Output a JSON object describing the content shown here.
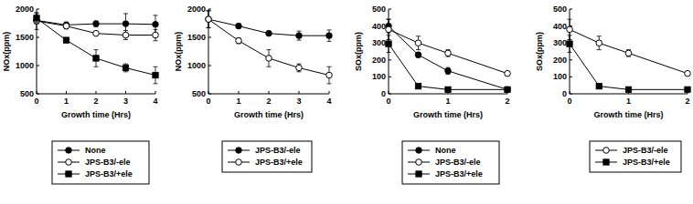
{
  "chart_data": [
    {
      "type": "line",
      "xlabel": "Growth time (Hrs)",
      "ylabel": "NOx(ppm)",
      "x": [
        0,
        1,
        2,
        3,
        4
      ],
      "xlim": [
        0,
        4
      ],
      "xticks": [
        0,
        1,
        2,
        3,
        4
      ],
      "ylim": [
        500,
        2000
      ],
      "yticks": [
        500,
        1000,
        1500,
        2000
      ],
      "legend": "below",
      "series": [
        {
          "name": "None",
          "color": "#000000",
          "marker": "filled_circle",
          "values": [
            1800,
            1720,
            1740,
            1740,
            1730
          ],
          "errors": [
            60,
            50,
            50,
            180,
            160
          ]
        },
        {
          "name": "JPS-B3/-ele",
          "color": "#000000",
          "marker": "open_circle",
          "values": [
            1790,
            1700,
            1570,
            1540,
            1540
          ],
          "errors": [
            150,
            50,
            30,
            80,
            100
          ]
        },
        {
          "name": "JPS-B3/+ele",
          "color": "#000000",
          "marker": "filled_square",
          "values": [
            1840,
            1450,
            1130,
            960,
            830
          ],
          "errors": [
            80,
            40,
            150,
            70,
            150
          ]
        }
      ]
    },
    {
      "type": "line",
      "xlabel": "Growth time (Hrs)",
      "ylabel": "NOx(ppm)",
      "x": [
        0,
        1,
        2,
        3,
        4
      ],
      "xlim": [
        0,
        4
      ],
      "xticks": [
        0,
        1,
        2,
        3,
        4
      ],
      "ylim": [
        500,
        2000
      ],
      "yticks": [
        500,
        1000,
        1500,
        2000
      ],
      "legend": "below",
      "series": [
        {
          "name": "JPS-B3/-ele",
          "color": "#000000",
          "marker": "filled_circle",
          "values": [
            1820,
            1700,
            1570,
            1530,
            1530
          ],
          "errors": [
            150,
            40,
            30,
            80,
            100
          ]
        },
        {
          "name": "JPS-B3/+ele",
          "color": "#000000",
          "marker": "open_circle",
          "values": [
            1820,
            1440,
            1130,
            960,
            830
          ],
          "errors": [
            150,
            50,
            150,
            70,
            150
          ]
        }
      ]
    },
    {
      "type": "line",
      "xlabel": "Growth time (Hrs)",
      "ylabel": "SOx(ppm)",
      "x": [
        0,
        0.5,
        1,
        2
      ],
      "xlim": [
        0,
        2
      ],
      "xticks": [
        0,
        1,
        2
      ],
      "ylim": [
        0,
        500
      ],
      "yticks": [
        0,
        100,
        200,
        300,
        400,
        500
      ],
      "legend": "below",
      "series": [
        {
          "name": "None",
          "color": "#000000",
          "marker": "filled_circle",
          "values": [
            400,
            230,
            135,
            25
          ],
          "errors": [
            40,
            15,
            20,
            5
          ]
        },
        {
          "name": "JPS-B3/-ele",
          "color": "#000000",
          "marker": "open_circle",
          "values": [
            380,
            300,
            240,
            120
          ],
          "errors": [
            60,
            40,
            20,
            10
          ]
        },
        {
          "name": "JPS-B3/+ele",
          "color": "#000000",
          "marker": "filled_square",
          "values": [
            295,
            45,
            25,
            25
          ],
          "errors": [
            50,
            5,
            3,
            3
          ]
        }
      ]
    },
    {
      "type": "line",
      "xlabel": "Growth time (Hrs)",
      "ylabel": "SOx(ppm)",
      "x": [
        0,
        0.5,
        1,
        2
      ],
      "xlim": [
        0,
        2
      ],
      "xticks": [
        0,
        1,
        2
      ],
      "ylim": [
        0,
        500
      ],
      "yticks": [
        0,
        100,
        200,
        300,
        400,
        500
      ],
      "legend": "below",
      "series": [
        {
          "name": "JPS-B3/-ele",
          "color": "#000000",
          "marker": "open_circle",
          "values": [
            380,
            300,
            240,
            120
          ],
          "errors": [
            60,
            40,
            20,
            10
          ]
        },
        {
          "name": "JPS-B3/+ele",
          "color": "#000000",
          "marker": "filled_square",
          "values": [
            295,
            45,
            25,
            25
          ],
          "errors": [
            50,
            5,
            3,
            3
          ]
        }
      ]
    }
  ]
}
